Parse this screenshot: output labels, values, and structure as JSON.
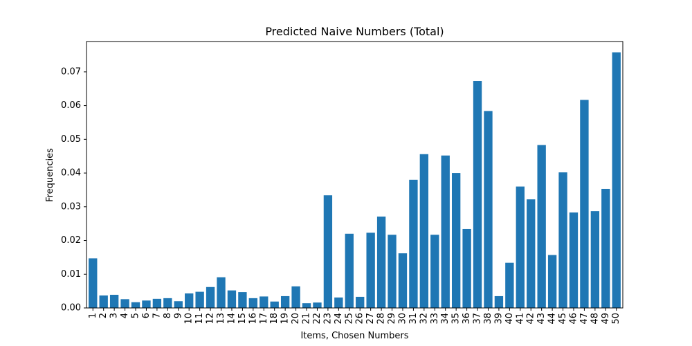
{
  "chart_data": {
    "type": "bar",
    "title": "Predicted Naive Numbers (Total)",
    "xlabel": "Items, Chosen Numbers",
    "ylabel": "Frequencies",
    "ylim": [
      0,
      0.079
    ],
    "yticks": [
      0.0,
      0.01,
      0.02,
      0.03,
      0.04,
      0.05,
      0.06,
      0.07
    ],
    "ytick_labels": [
      "0.00",
      "0.01",
      "0.02",
      "0.03",
      "0.04",
      "0.05",
      "0.06",
      "0.07"
    ],
    "grid": false,
    "bar_color": "#1f77b4",
    "categories": [
      "1",
      "2",
      "3",
      "4",
      "5",
      "6",
      "7",
      "8",
      "9",
      "10",
      "11",
      "12",
      "13",
      "14",
      "15",
      "16",
      "17",
      "18",
      "19",
      "20",
      "21",
      "22",
      "23",
      "24",
      "25",
      "26",
      "27",
      "28",
      "29",
      "30",
      "31",
      "32",
      "33",
      "34",
      "35",
      "36",
      "37",
      "38",
      "39",
      "40",
      "41",
      "42",
      "43",
      "44",
      "45",
      "46",
      "47",
      "48",
      "49",
      "50"
    ],
    "values": [
      0.0147,
      0.0037,
      0.0039,
      0.0026,
      0.0017,
      0.0022,
      0.0027,
      0.0029,
      0.002,
      0.0043,
      0.0048,
      0.0062,
      0.0091,
      0.0052,
      0.0047,
      0.0029,
      0.0034,
      0.0019,
      0.0035,
      0.0064,
      0.0014,
      0.0016,
      0.0334,
      0.0031,
      0.022,
      0.0033,
      0.0223,
      0.0271,
      0.0217,
      0.0162,
      0.038,
      0.0456,
      0.0217,
      0.0452,
      0.04,
      0.0234,
      0.0673,
      0.0584,
      0.0035,
      0.0134,
      0.036,
      0.0322,
      0.0483,
      0.0157,
      0.0402,
      0.0283,
      0.0617,
      0.0287,
      0.0353,
      0.0758
    ]
  }
}
